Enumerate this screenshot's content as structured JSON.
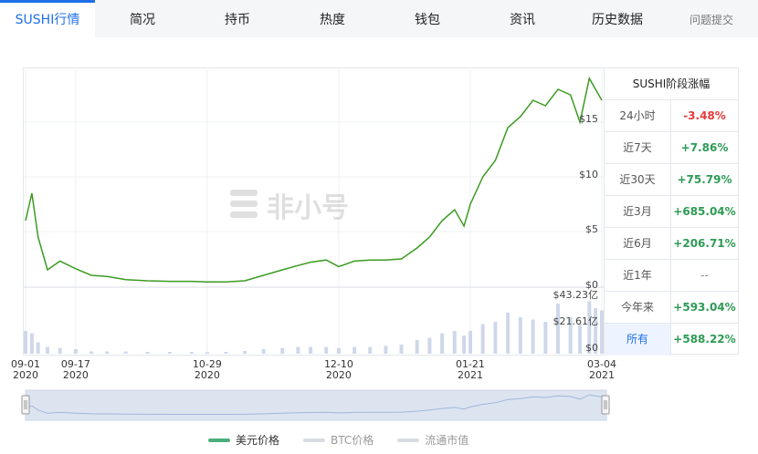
{
  "tabs": [
    {
      "label": "SUSHI行情",
      "active": true
    },
    {
      "label": "简况"
    },
    {
      "label": "持币"
    },
    {
      "label": "热度"
    },
    {
      "label": "钱包"
    },
    {
      "label": "资讯"
    },
    {
      "label": "历史数据"
    },
    {
      "label": "问题提交"
    }
  ],
  "watermark": "非小号",
  "side_panel": {
    "title": "SUSHI阶段涨幅",
    "rows": [
      {
        "period": "24小时",
        "change": "-3.48%",
        "trend": "down"
      },
      {
        "period": "近7天",
        "change": "+7.86%",
        "trend": "up"
      },
      {
        "period": "近30天",
        "change": "+75.79%",
        "trend": "up"
      },
      {
        "period": "近3月",
        "change": "+685.04%",
        "trend": "up"
      },
      {
        "period": "近6月",
        "change": "+206.71%",
        "trend": "up"
      },
      {
        "period": "近1年",
        "change": "--",
        "trend": "flat"
      },
      {
        "period": "今年来",
        "change": "+593.04%",
        "trend": "up"
      },
      {
        "period": "所有",
        "change": "+588.22%",
        "trend": "up"
      }
    ]
  },
  "legend": [
    {
      "label": "美元价格",
      "color": "#4caf7a",
      "active": true
    },
    {
      "label": "BTC价格",
      "color": "#d9dde3",
      "active": false
    },
    {
      "label": "流通市值",
      "color": "#d9dde3",
      "active": false
    }
  ],
  "colors": {
    "accent": "#1e6fe8",
    "price_line": "#3c9b22",
    "volume": "#cfd8ea"
  },
  "chart_data": {
    "type": "line",
    "x": [
      "2020-09-01",
      "2020-09-03",
      "2020-09-05",
      "2020-09-08",
      "2020-09-12",
      "2020-09-17",
      "2020-09-22",
      "2020-09-27",
      "2020-10-03",
      "2020-10-10",
      "2020-10-17",
      "2020-10-24",
      "2020-10-29",
      "2020-11-04",
      "2020-11-10",
      "2020-11-16",
      "2020-11-22",
      "2020-11-27",
      "2020-12-01",
      "2020-12-06",
      "2020-12-10",
      "2020-12-15",
      "2020-12-20",
      "2020-12-25",
      "2020-12-30",
      "2021-01-04",
      "2021-01-08",
      "2021-01-12",
      "2021-01-16",
      "2021-01-19",
      "2021-01-21",
      "2021-01-25",
      "2021-01-29",
      "2021-02-02",
      "2021-02-06",
      "2021-02-10",
      "2021-02-14",
      "2021-02-18",
      "2021-02-22",
      "2021-02-25",
      "2021-02-28",
      "2021-03-02",
      "2021-03-04"
    ],
    "series": [
      {
        "values": [
          6.0,
          8.5,
          4.5,
          1.5,
          2.3,
          1.6,
          1.0,
          0.9,
          0.6,
          0.5,
          0.45,
          0.45,
          0.4,
          0.4,
          0.5,
          1.0,
          1.5,
          1.9,
          2.2,
          2.4,
          1.8,
          2.3,
          2.4,
          2.4,
          2.5,
          3.5,
          4.5,
          6.0,
          7.0,
          5.5,
          7.5,
          10.0,
          11.5,
          14.5,
          15.5,
          17.0,
          16.5,
          18.0,
          17.5,
          15.0,
          19.0,
          18.0,
          17.0
        ]
      }
    ],
    "volume": [
      1.0,
      0.9,
      0.5,
      0.3,
      0.25,
      0.2,
      0.1,
      0.1,
      0.1,
      0.08,
      0.08,
      0.08,
      0.07,
      0.08,
      0.12,
      0.2,
      0.25,
      0.3,
      0.3,
      0.3,
      0.25,
      0.3,
      0.3,
      0.35,
      0.4,
      0.6,
      0.7,
      0.9,
      1.0,
      0.8,
      1.0,
      1.3,
      1.4,
      1.8,
      1.6,
      1.5,
      1.4,
      2.2,
      1.6,
      1.3,
      2.3,
      2.0,
      1.9
    ],
    "y_ticks": [
      "$0",
      "$5",
      "$10",
      "$15"
    ],
    "ylim": [
      0,
      20
    ],
    "volume_ticks": [
      "$0",
      "$21.61亿",
      "$43.23亿"
    ],
    "x_ticks": [
      {
        "date": "09-01",
        "year": "2020"
      },
      {
        "date": "09-17",
        "year": "2020"
      },
      {
        "date": "10-29",
        "year": "2020"
      },
      {
        "date": "12-10",
        "year": "2020"
      },
      {
        "date": "01-21",
        "year": "2021"
      },
      {
        "date": "03-04",
        "year": "2021"
      }
    ]
  }
}
